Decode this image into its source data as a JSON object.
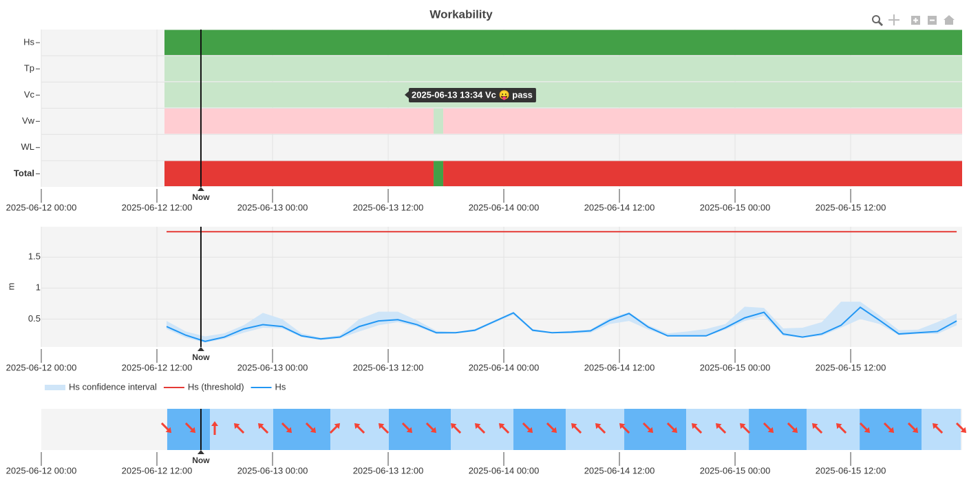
{
  "title": "Workability",
  "chart_data": [
    {
      "type": "timeline",
      "categories": [
        "Hs",
        "Tp",
        "Vc",
        "Vw",
        "WL",
        "Total"
      ],
      "rows": [
        {
          "segments": [
            {
              "start": "2025-06-12 12:47",
              "end": "2025-06-15 23:34",
              "color": "#43a047"
            }
          ]
        },
        {
          "segments": [
            {
              "start": "2025-06-12 12:47",
              "end": "2025-06-15 23:34",
              "color": "#c8e6c9"
            }
          ]
        },
        {
          "segments": [
            {
              "start": "2025-06-12 12:47",
              "end": "2025-06-15 23:34",
              "color": "#c8e6c9"
            }
          ]
        },
        {
          "segments": [
            {
              "start": "2025-06-12 12:47",
              "end": "2025-06-13 16:43",
              "color": "#ffcdd2"
            },
            {
              "start": "2025-06-13 16:43",
              "end": "2025-06-13 17:43",
              "color": "#c8e6c9"
            },
            {
              "start": "2025-06-13 17:43",
              "end": "2025-06-15 23:34",
              "color": "#ffcdd2"
            }
          ]
        },
        {
          "segments": []
        },
        {
          "segments": [
            {
              "start": "2025-06-12 12:47",
              "end": "2025-06-13 16:43",
              "color": "#e53935"
            },
            {
              "start": "2025-06-13 16:43",
              "end": "2025-06-13 17:43",
              "color": "#43a047"
            },
            {
              "start": "2025-06-13 17:43",
              "end": "2025-06-15 23:34",
              "color": "#e53935"
            }
          ]
        }
      ],
      "xlim": [
        "2025-06-12 00:00",
        "2025-06-15 23:34"
      ],
      "xticks": [
        "2025-06-12 00:00",
        "2025-06-12 12:00",
        "2025-06-13 00:00",
        "2025-06-13 12:00",
        "2025-06-14 00:00",
        "2025-06-14 12:00",
        "2025-06-15 00:00",
        "2025-06-15 12:00"
      ],
      "now": "2025-06-12 16:34",
      "now_label": "Now",
      "tooltip": "2025-06-13 13:34 Vc 😛 pass",
      "grid": true
    },
    {
      "type": "line",
      "ylabel": "m",
      "x": [
        "2025-06-12 13:00",
        "2025-06-12 15:00",
        "2025-06-12 17:00",
        "2025-06-12 19:00",
        "2025-06-12 21:00",
        "2025-06-12 23:00",
        "2025-06-13 01:00",
        "2025-06-13 03:00",
        "2025-06-13 05:00",
        "2025-06-13 07:00",
        "2025-06-13 09:00",
        "2025-06-13 11:00",
        "2025-06-13 13:00",
        "2025-06-13 15:00",
        "2025-06-13 17:00",
        "2025-06-13 19:00",
        "2025-06-13 21:00",
        "2025-06-13 23:00",
        "2025-06-14 01:00",
        "2025-06-14 03:00",
        "2025-06-14 05:00",
        "2025-06-14 07:00",
        "2025-06-14 09:00",
        "2025-06-14 11:00",
        "2025-06-14 13:00",
        "2025-06-14 15:00",
        "2025-06-14 17:00",
        "2025-06-14 19:00",
        "2025-06-14 21:00",
        "2025-06-14 23:00",
        "2025-06-15 01:00",
        "2025-06-15 03:00",
        "2025-06-15 05:00",
        "2025-06-15 07:00",
        "2025-06-15 09:00",
        "2025-06-15 11:00",
        "2025-06-15 13:00",
        "2025-06-15 15:00",
        "2025-06-15 17:00",
        "2025-06-15 19:00",
        "2025-06-15 21:00",
        "2025-06-15 23:00"
      ],
      "series": [
        {
          "name": "Hs confidence interval",
          "color": "#cfe5f8",
          "upper": [
            0.47,
            0.3,
            0.22,
            0.27,
            0.4,
            0.6,
            0.5,
            0.27,
            0.2,
            0.24,
            0.5,
            0.62,
            0.62,
            0.48,
            0.31,
            0.29,
            0.34,
            0.48,
            0.62,
            0.34,
            0.29,
            0.31,
            0.33,
            0.52,
            0.61,
            0.4,
            0.27,
            0.3,
            0.34,
            0.42,
            0.7,
            0.68,
            0.35,
            0.36,
            0.45,
            0.78,
            0.78,
            0.56,
            0.32,
            0.33,
            0.45,
            0.59
          ],
          "lower": [
            0.34,
            0.2,
            0.12,
            0.18,
            0.28,
            0.36,
            0.35,
            0.21,
            0.16,
            0.19,
            0.3,
            0.4,
            0.45,
            0.38,
            0.26,
            0.27,
            0.3,
            0.44,
            0.57,
            0.3,
            0.27,
            0.27,
            0.28,
            0.42,
            0.47,
            0.33,
            0.22,
            0.22,
            0.22,
            0.33,
            0.47,
            0.55,
            0.23,
            0.2,
            0.23,
            0.36,
            0.5,
            0.42,
            0.24,
            0.26,
            0.26,
            0.4
          ]
        },
        {
          "name": "Hs (threshold)",
          "color": "#e53935",
          "value": 1.91
        },
        {
          "name": "Hs",
          "color": "#2196f3",
          "values": [
            0.38,
            0.24,
            0.14,
            0.21,
            0.34,
            0.41,
            0.38,
            0.23,
            0.18,
            0.21,
            0.38,
            0.47,
            0.49,
            0.41,
            0.28,
            0.28,
            0.32,
            0.46,
            0.6,
            0.32,
            0.28,
            0.29,
            0.31,
            0.48,
            0.59,
            0.37,
            0.23,
            0.23,
            0.23,
            0.36,
            0.52,
            0.61,
            0.26,
            0.21,
            0.26,
            0.4,
            0.69,
            0.48,
            0.26,
            0.28,
            0.3,
            0.47
          ]
        }
      ],
      "ylim": [
        0.05,
        1.99
      ],
      "yticks": [
        0.5,
        1,
        1.5
      ],
      "xlim": [
        "2025-06-12 00:00",
        "2025-06-15 23:34"
      ],
      "xticks": [
        "2025-06-12 00:00",
        "2025-06-12 12:00",
        "2025-06-13 00:00",
        "2025-06-13 12:00",
        "2025-06-14 00:00",
        "2025-06-14 12:00",
        "2025-06-15 00:00",
        "2025-06-15 12:00"
      ],
      "now": "2025-06-12 16:34",
      "now_label": "Now",
      "grid": true,
      "legend": "bottom-left"
    },
    {
      "type": "arrows",
      "bands": [
        {
          "start": "2025-06-12 13:04",
          "end": "2025-06-12 17:30",
          "color": "#64b5f6"
        },
        {
          "start": "2025-06-12 17:30",
          "end": "2025-06-13 00:04",
          "color": "#bbdefb"
        },
        {
          "start": "2025-06-13 00:04",
          "end": "2025-06-13 06:00",
          "color": "#64b5f6"
        },
        {
          "start": "2025-06-13 06:00",
          "end": "2025-06-13 12:04",
          "color": "#bbdefb"
        },
        {
          "start": "2025-06-13 12:04",
          "end": "2025-06-13 18:30",
          "color": "#64b5f6"
        },
        {
          "start": "2025-06-13 18:30",
          "end": "2025-06-14 01:00",
          "color": "#bbdefb"
        },
        {
          "start": "2025-06-14 01:00",
          "end": "2025-06-14 06:26",
          "color": "#64b5f6"
        },
        {
          "start": "2025-06-14 06:26",
          "end": "2025-06-14 12:30",
          "color": "#bbdefb"
        },
        {
          "start": "2025-06-14 12:30",
          "end": "2025-06-14 18:56",
          "color": "#64b5f6"
        },
        {
          "start": "2025-06-14 18:56",
          "end": "2025-06-15 01:26",
          "color": "#bbdefb"
        },
        {
          "start": "2025-06-15 01:26",
          "end": "2025-06-15 07:26",
          "color": "#64b5f6"
        },
        {
          "start": "2025-06-15 07:26",
          "end": "2025-06-15 12:56",
          "color": "#bbdefb"
        },
        {
          "start": "2025-06-15 12:56",
          "end": "2025-06-15 19:22",
          "color": "#64b5f6"
        },
        {
          "start": "2025-06-15 19:22",
          "end": "2025-06-15 23:26",
          "color": "#bbdefb"
        }
      ],
      "x": [
        "2025-06-12 13:00",
        "2025-06-12 15:30",
        "2025-06-12 18:00",
        "2025-06-12 20:30",
        "2025-06-12 23:00",
        "2025-06-13 01:30",
        "2025-06-13 04:00",
        "2025-06-13 06:30",
        "2025-06-13 09:00",
        "2025-06-13 11:30",
        "2025-06-13 14:00",
        "2025-06-13 16:30",
        "2025-06-13 19:00",
        "2025-06-13 21:30",
        "2025-06-14 00:00",
        "2025-06-14 02:30",
        "2025-06-14 05:00",
        "2025-06-14 07:30",
        "2025-06-14 10:00",
        "2025-06-14 12:30",
        "2025-06-14 15:00",
        "2025-06-14 17:30",
        "2025-06-14 20:00",
        "2025-06-14 22:30",
        "2025-06-15 01:00",
        "2025-06-15 03:30",
        "2025-06-15 06:00",
        "2025-06-15 08:30",
        "2025-06-15 11:00",
        "2025-06-15 13:30",
        "2025-06-15 16:00",
        "2025-06-15 18:30",
        "2025-06-15 21:00",
        "2025-06-15 23:30"
      ],
      "directions": [
        135,
        135,
        0,
        315,
        315,
        135,
        135,
        45,
        315,
        315,
        135,
        135,
        315,
        315,
        315,
        135,
        135,
        315,
        315,
        315,
        135,
        135,
        315,
        315,
        315,
        135,
        135,
        315,
        315,
        135,
        135,
        135,
        315,
        135
      ],
      "arrow_color": "#f44336",
      "xlim": [
        "2025-06-12 00:00",
        "2025-06-15 23:34"
      ],
      "xticks": [
        "2025-06-12 00:00",
        "2025-06-12 12:00",
        "2025-06-13 00:00",
        "2025-06-13 12:00",
        "2025-06-14 00:00",
        "2025-06-14 12:00",
        "2025-06-15 00:00",
        "2025-06-15 12:00"
      ],
      "now": "2025-06-12 16:34",
      "now_label": "Now"
    }
  ]
}
